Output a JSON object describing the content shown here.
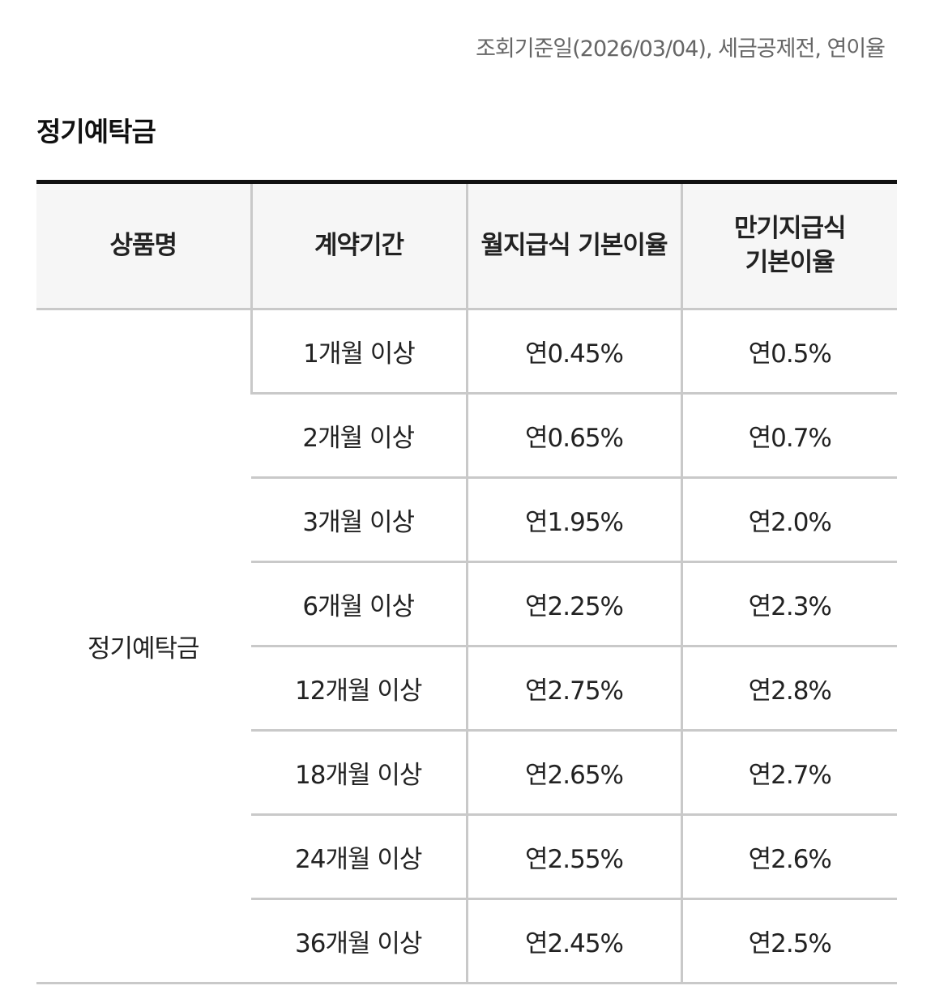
{
  "header": {
    "note": "조회기준일(2026/03/04), 세금공제전, 연이율"
  },
  "section": {
    "title": "정기예탁금"
  },
  "table": {
    "columns": [
      "상품명",
      "계약기간",
      "월지급식 기본이율",
      "만기지급식 기본이율"
    ],
    "product_name": "정기예탁금",
    "rows": [
      {
        "period": "1개월 이상",
        "monthly_rate": "연0.45%",
        "maturity_rate": "연0.5%"
      },
      {
        "period": "2개월 이상",
        "monthly_rate": "연0.65%",
        "maturity_rate": "연0.7%"
      },
      {
        "period": "3개월 이상",
        "monthly_rate": "연1.95%",
        "maturity_rate": "연2.0%"
      },
      {
        "period": "6개월 이상",
        "monthly_rate": "연2.25%",
        "maturity_rate": "연2.3%"
      },
      {
        "period": "12개월 이상",
        "monthly_rate": "연2.75%",
        "maturity_rate": "연2.8%"
      },
      {
        "period": "18개월 이상",
        "monthly_rate": "연2.65%",
        "maturity_rate": "연2.7%"
      },
      {
        "period": "24개월 이상",
        "monthly_rate": "연2.55%",
        "maturity_rate": "연2.6%"
      },
      {
        "period": "36개월 이상",
        "monthly_rate": "연2.45%",
        "maturity_rate": "연2.5%"
      }
    ]
  }
}
